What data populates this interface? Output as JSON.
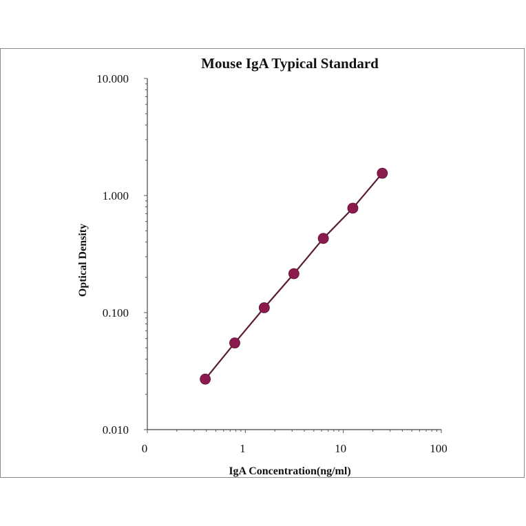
{
  "chart_data": {
    "type": "scatter",
    "title": "Mouse IgA Typical Standard",
    "xlabel": "IgA Concentration(ng/ml)",
    "ylabel": "Optical Density",
    "x_scale": "log",
    "y_scale": "log",
    "xlim": [
      0.1,
      100
    ],
    "ylim": [
      0.01,
      10
    ],
    "x_ticks": [
      "0",
      "1",
      "10",
      "100"
    ],
    "y_ticks": [
      "0.010",
      "0.100",
      "1.000",
      "10.000"
    ],
    "grid": false,
    "legend": "none",
    "series": [
      {
        "x": [
          0.39,
          0.78,
          1.56,
          3.13,
          6.25,
          12.5,
          25
        ],
        "y": [
          0.027,
          0.055,
          0.11,
          0.215,
          0.43,
          0.78,
          1.55
        ],
        "color": "#8b1a4f",
        "line_color": "#5a1a35",
        "marker": "circle",
        "line": "smooth"
      }
    ]
  }
}
